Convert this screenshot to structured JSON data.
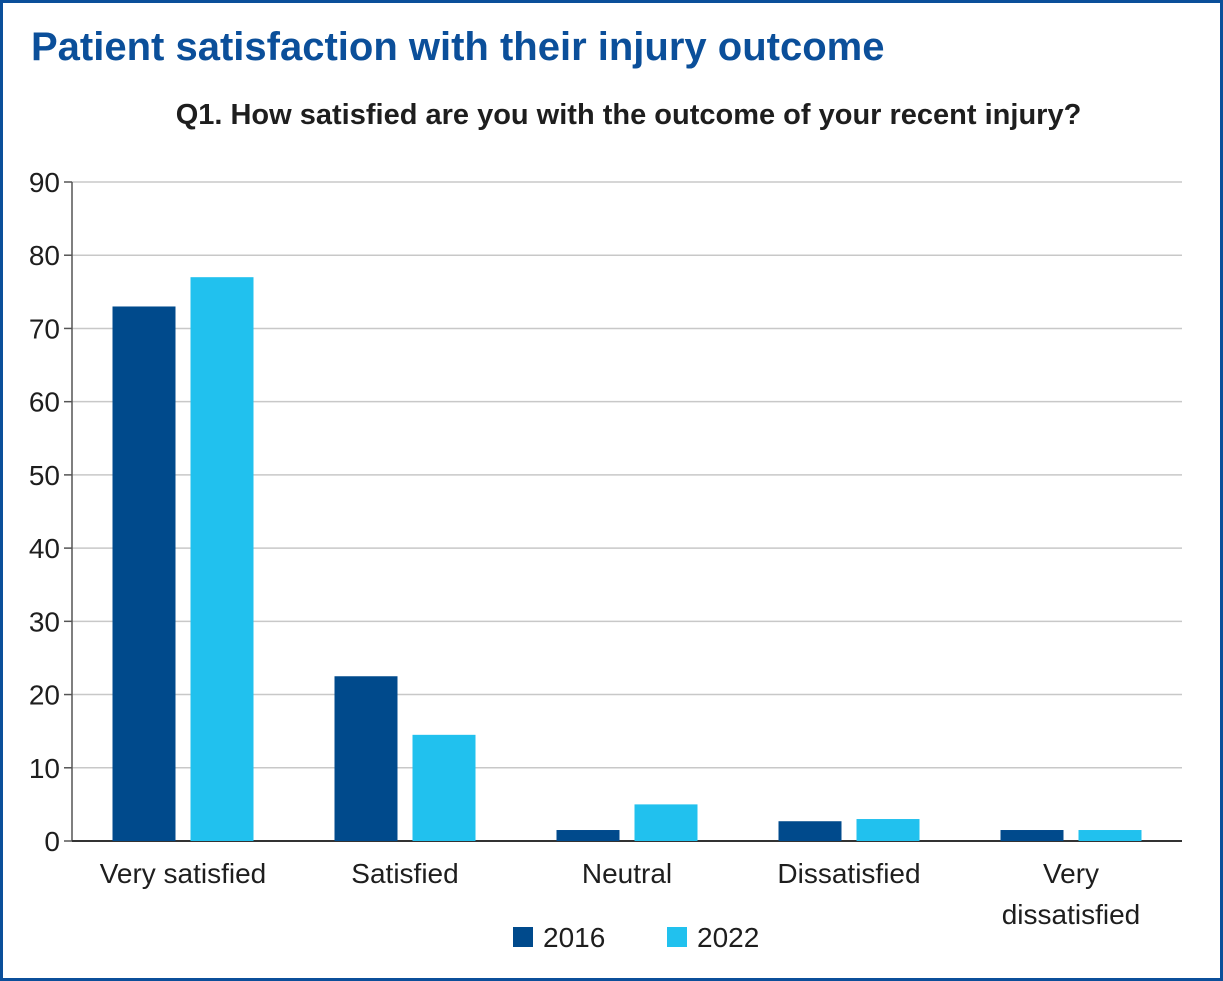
{
  "title": "Patient satisfaction with their injury outcome",
  "subtitle": "Q1. How satisfied are you with the outcome of your recent injury?",
  "colors": {
    "frame": "#0b4f9a",
    "title": "#0b4f9a",
    "series_2016": "#004a8c",
    "series_2022": "#21c1ee",
    "grid": "#c8c8c8"
  },
  "chart_data": {
    "type": "bar",
    "title": "Patient satisfaction with their injury outcome",
    "subtitle": "Q1. How satisfied are you with the outcome of your recent injury?",
    "categories": [
      "Very satisfied",
      "Satisfied",
      "Neutral",
      "Dissatisfied",
      "Very dissatisfied"
    ],
    "series": [
      {
        "name": "2016",
        "values": [
          73,
          22.5,
          1.5,
          2.7,
          1.5
        ]
      },
      {
        "name": "2022",
        "values": [
          77,
          14.5,
          5,
          3,
          1.5
        ]
      }
    ],
    "ylim": [
      0,
      90
    ],
    "yticks": [
      0,
      10,
      20,
      30,
      40,
      50,
      60,
      70,
      80,
      90
    ],
    "xlabel": "",
    "ylabel": "",
    "grid": true,
    "legend": "bottom-center"
  }
}
